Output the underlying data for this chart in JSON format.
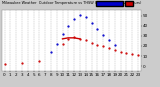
{
  "bg_color": "#cccccc",
  "plot_bg": "#ffffff",
  "legend_blue_color": "#0000cc",
  "legend_red_color": "#cc0000",
  "title_text": "Milwaukee Weather  Outdoor Temperature vs THSW Index per Hour (24 Hours)",
  "xlim": [
    -0.5,
    23.5
  ],
  "ylim": [
    -5,
    55
  ],
  "yticks": [
    0,
    10,
    20,
    30,
    40,
    50
  ],
  "ytick_labels": [
    "0",
    "10",
    "20",
    "30",
    "40",
    "50"
  ],
  "xticks": [
    0,
    1,
    2,
    3,
    4,
    5,
    6,
    7,
    8,
    9,
    10,
    11,
    12,
    13,
    14,
    15,
    16,
    17,
    18,
    19,
    20,
    21,
    22,
    23
  ],
  "hours": [
    0,
    1,
    2,
    3,
    4,
    5,
    6,
    7,
    8,
    9,
    10,
    11,
    12,
    13,
    14,
    15,
    16,
    17,
    18,
    19,
    20,
    21,
    22,
    23
  ],
  "thsw": [
    null,
    null,
    null,
    null,
    null,
    null,
    null,
    null,
    14,
    22,
    32,
    40,
    47,
    51,
    49,
    43,
    37,
    31,
    26,
    21,
    null,
    null,
    null,
    null
  ],
  "temp": [
    2,
    null,
    null,
    3,
    null,
    null,
    5,
    null,
    null,
    null,
    22,
    27,
    29,
    27,
    26,
    23,
    21,
    20,
    18,
    16,
    14,
    13,
    12,
    11
  ],
  "temp_line": [
    10,
    11,
    12,
    13
  ],
  "temp_line_y": [
    27,
    28,
    28,
    27
  ],
  "grid_color": "#999999",
  "dot_size": 1.2,
  "tick_fontsize": 3.0
}
